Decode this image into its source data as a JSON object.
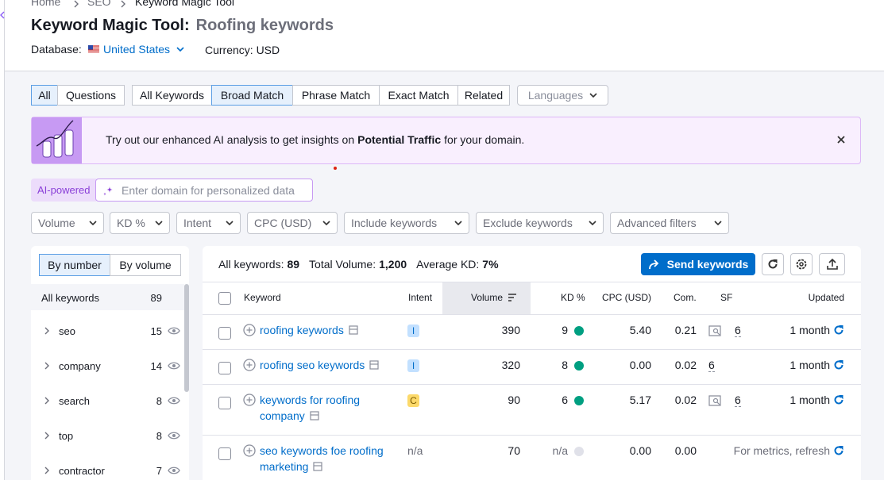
{
  "breadcrumb": [
    "Home",
    "SEO",
    "Keyword Magic Tool"
  ],
  "header": {
    "title": "Keyword Magic Tool:",
    "subtitle": "Roofing keywords",
    "database_label": "Database:",
    "database": "United States",
    "currency": "Currency: USD"
  },
  "tabs": {
    "type": [
      "All",
      "Questions"
    ],
    "match": [
      "All Keywords",
      "Broad Match",
      "Phrase Match",
      "Exact Match",
      "Related"
    ],
    "languages": "Languages",
    "selected_type": 0,
    "selected_match": 1
  },
  "banner": {
    "before": "Try out our enhanced AI analysis to get insights on",
    "bold": "Potential Traffic",
    "after": "for your domain."
  },
  "ai": {
    "badge": "AI-powered",
    "placeholder": "Enter domain for personalized data"
  },
  "filters": [
    "Volume",
    "KD %",
    "Intent",
    "CPC (USD)",
    "Include keywords",
    "Exclude keywords",
    "Advanced filters"
  ],
  "sidebar": {
    "toggle": [
      "By number",
      "By volume"
    ],
    "header": {
      "label": "All keywords",
      "count": 89
    },
    "groups": [
      {
        "name": "seo",
        "count": 15
      },
      {
        "name": "company",
        "count": 14
      },
      {
        "name": "search",
        "count": 8
      },
      {
        "name": "top",
        "count": 8
      },
      {
        "name": "contractor",
        "count": 7
      }
    ]
  },
  "summary": {
    "all_label": "All keywords:",
    "all": 89,
    "volume_label": "Total Volume:",
    "volume": "1,200",
    "kd_label": "Average KD:",
    "kd": "7%"
  },
  "send_button": "Send keywords",
  "table": {
    "columns": [
      "Keyword",
      "Intent",
      "Volume",
      "KD %",
      "CPC (USD)",
      "Com.",
      "SF",
      "Updated"
    ],
    "rows": [
      {
        "keyword": "roofing keywords",
        "intent": "I",
        "volume": 390,
        "kd": 9,
        "cpc": "5.40",
        "com": "0.21",
        "serp_icon": true,
        "sf": 6,
        "updated": "1 month"
      },
      {
        "keyword": "roofing seo keywords",
        "intent": "I",
        "volume": 320,
        "kd": 8,
        "cpc": "0.00",
        "com": "0.02",
        "serp_icon": false,
        "sf": 6,
        "updated": "1 month"
      },
      {
        "keyword": "keywords for roofing company",
        "intent": "C",
        "volume": 90,
        "kd": 6,
        "cpc": "5.17",
        "com": "0.02",
        "serp_icon": true,
        "sf": 6,
        "updated": "1 month"
      },
      {
        "keyword": "seo keywords foe roofing marketing",
        "intent": "n/a",
        "volume": 70,
        "kd": "n/a",
        "cpc": "0.00",
        "com": "0.00",
        "serp_icon": false,
        "updated": "For metrics, refresh"
      }
    ]
  }
}
